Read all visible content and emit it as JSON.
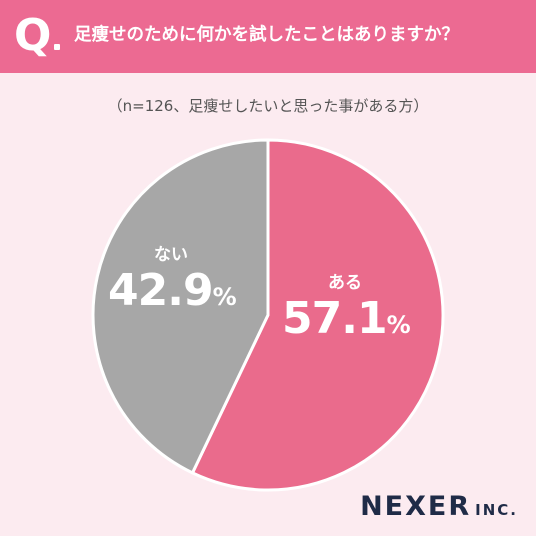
{
  "header": {
    "q_label": "Q",
    "question": "足痩せのために何かを試したことはありますか？"
  },
  "subtitle": "（n=126、足痩せしたいと思った事がある方）",
  "colors": {
    "header_bg": "#ec6a92",
    "page_bg": "#fcebf0",
    "aru": "#ea6b8c",
    "nai": "#a7a7a7"
  },
  "chart_data": {
    "type": "pie",
    "title": "足痩せのために何かを試したことはありますか？",
    "slices": [
      {
        "label": "ある",
        "value": 57.1,
        "display": "57.1",
        "unit": "%",
        "color": "#ea6b8c"
      },
      {
        "label": "ない",
        "value": 42.9,
        "display": "42.9",
        "unit": "%",
        "color": "#a7a7a7"
      }
    ]
  },
  "brand": {
    "main": "NEXER",
    "sub": "INC."
  }
}
